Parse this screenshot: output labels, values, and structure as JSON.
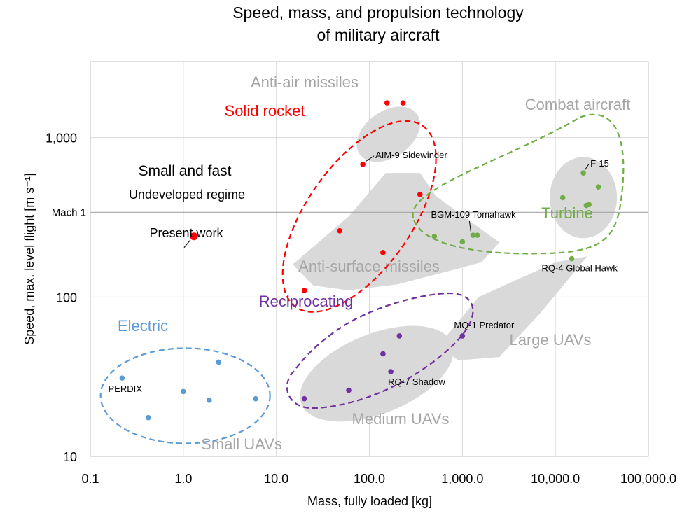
{
  "chart_data": {
    "type": "scatter",
    "title": [
      "Speed, mass, and propulsion technology",
      "of military aircraft"
    ],
    "xlabel": "Mass, fully loaded [kg]",
    "ylabel": "Speed, max. level flight [m s⁻¹]",
    "xscale": "log",
    "yscale": "log",
    "xlim": [
      0.1,
      100000
    ],
    "ylim": [
      10,
      3000
    ],
    "grid": true,
    "xticks": [
      {
        "v": 0.1,
        "label": "0.1"
      },
      {
        "v": 1,
        "label": "1.0"
      },
      {
        "v": 10,
        "label": "10.0"
      },
      {
        "v": 100,
        "label": "100.0"
      },
      {
        "v": 1000,
        "label": "1,000.0"
      },
      {
        "v": 10000,
        "label": "10,000.0"
      },
      {
        "v": 100000,
        "label": "100,000.0"
      }
    ],
    "yticks": [
      {
        "v": 10,
        "label": "10"
      },
      {
        "v": 100,
        "label": "100"
      },
      {
        "v": 1000,
        "label": "1,000"
      }
    ],
    "mach_line": {
      "v": 340,
      "label": "Mach 1"
    },
    "colors": {
      "solid_rocket": "#ff0000",
      "turbine": "#70ad47",
      "reciprocating": "#7030a0",
      "electric": "#5b9bd5",
      "region_fill": "#d9d9d9",
      "region_text": "#a6a6a6",
      "grid": "#d9d9d9",
      "mach_line": "#a6a6a6"
    },
    "series": [
      {
        "key": "solid_rocket",
        "name": "Solid rocket",
        "points": [
          {
            "x": 155,
            "y": 1650
          },
          {
            "x": 230,
            "y": 1650
          },
          {
            "x": 85,
            "y": 680,
            "label": "AIM-9 Sidewinder"
          },
          {
            "x": 350,
            "y": 440
          },
          {
            "x": 48,
            "y": 260
          },
          {
            "x": 140,
            "y": 190
          },
          {
            "x": 20,
            "y": 110
          }
        ]
      },
      {
        "key": "turbine",
        "name": "Turbine",
        "points": [
          {
            "x": 20000,
            "y": 600,
            "label": "F-15"
          },
          {
            "x": 29000,
            "y": 490
          },
          {
            "x": 12000,
            "y": 420
          },
          {
            "x": 23000,
            "y": 380
          },
          {
            "x": 21500,
            "y": 375
          },
          {
            "x": 1300,
            "y": 244,
            "label": "BGM-109 Tomahawk"
          },
          {
            "x": 1450,
            "y": 244
          },
          {
            "x": 500,
            "y": 240
          },
          {
            "x": 1000,
            "y": 222
          },
          {
            "x": 15000,
            "y": 174,
            "label": "RQ-4 Global Hawk"
          }
        ]
      },
      {
        "key": "reciprocating",
        "name": "Reciprocating",
        "points": [
          {
            "x": 1000,
            "y": 57,
            "label": "MQ-1 Predator"
          },
          {
            "x": 210,
            "y": 57
          },
          {
            "x": 140,
            "y": 44
          },
          {
            "x": 170,
            "y": 34,
            "label": "RQ-7 Shadow"
          },
          {
            "x": 60,
            "y": 26
          },
          {
            "x": 20,
            "y": 23
          }
        ]
      },
      {
        "key": "electric",
        "name": "Electric",
        "points": [
          {
            "x": 2.4,
            "y": 39
          },
          {
            "x": 0.22,
            "y": 31,
            "label": "PERDIX"
          },
          {
            "x": 1.0,
            "y": 25.5
          },
          {
            "x": 1.9,
            "y": 22.5
          },
          {
            "x": 6.0,
            "y": 23
          },
          {
            "x": 0.42,
            "y": 17.5
          }
        ]
      }
    ],
    "present_work": {
      "x": 1.3,
      "y": 240,
      "label": "Present work",
      "color": "#ff0000"
    },
    "annotations": {
      "small_fast": "Small and fast",
      "undeveloped": "Undeveloped regime"
    },
    "regions": {
      "anti_air": "Anti-air missiles",
      "anti_surface": "Anti-surface missiles",
      "combat": "Combat aircraft",
      "large_uav": "Large UAVs",
      "medium_uav": "Medium UAVs",
      "small_uav": "Small UAVs"
    }
  }
}
